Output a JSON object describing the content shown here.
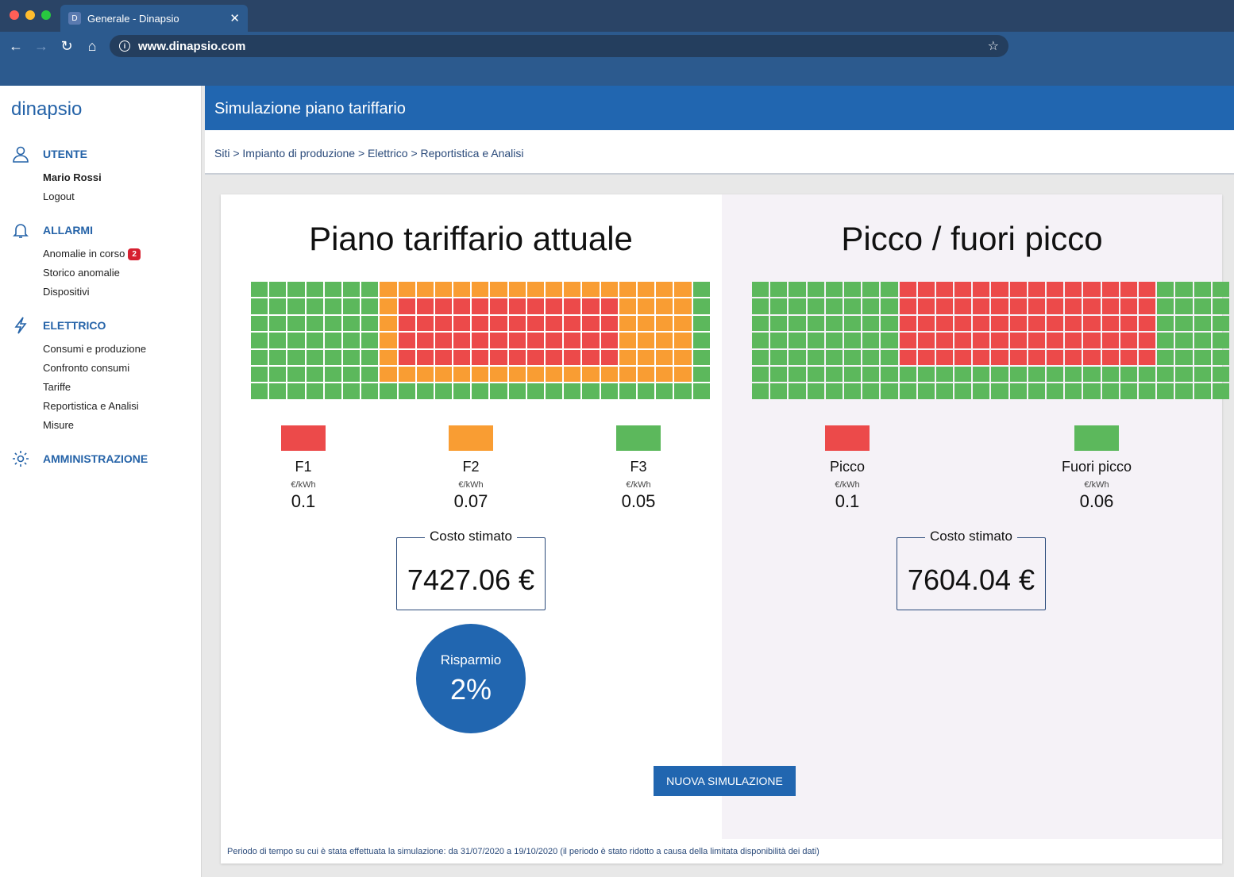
{
  "browser": {
    "tab_title": "Generale - Dinapsio",
    "tab_favicon": "D",
    "url": "www.dinapsio.com"
  },
  "sidebar": {
    "logo": "dinapsio",
    "user": {
      "heading": "UTENTE",
      "name": "Mario Rossi",
      "logout": "Logout"
    },
    "alarms": {
      "heading": "ALLARMI",
      "items": [
        "Anomalie in corso",
        "Storico anomalie",
        "Dispositivi"
      ],
      "badge": "2"
    },
    "electric": {
      "heading": "ELETTRICO",
      "items": [
        "Consumi e produzione",
        "Confronto consumi",
        "Tariffe",
        "Reportistica e Analisi",
        "Misure"
      ]
    },
    "admin": {
      "heading": "AMMINISTRAZIONE"
    }
  },
  "header": {
    "title": "Simulazione piano tariffario"
  },
  "breadcrumb": "Siti > Impianto di produzione > Elettrico > Reportistica e Analisi",
  "colors": {
    "F1": "#ec4a4a",
    "F2": "#f99d33",
    "F3": "#5cb85c",
    "primary": "#2166b0"
  },
  "left": {
    "title": "Piano tariffario attuale",
    "bands": [
      {
        "name": "F1",
        "unit": "€/kWh",
        "value": "0.1",
        "color": "#ec4a4a"
      },
      {
        "name": "F2",
        "unit": "€/kWh",
        "value": "0.07",
        "color": "#f99d33"
      },
      {
        "name": "F3",
        "unit": "€/kWh",
        "value": "0.05",
        "color": "#5cb85c"
      }
    ],
    "cost_label": "Costo stimato",
    "cost_value": "7427.06 €",
    "grid": [
      "3333333222222222222222223",
      "3333333211111111111122223",
      "3333333211111111111122223",
      "3333333211111111111122223",
      "3333333211111111111122223",
      "3333333222222222222222223",
      "3333333333333333333333333"
    ]
  },
  "saving": {
    "label": "Risparmio",
    "value": "2%"
  },
  "right": {
    "title": "Picco / fuori picco",
    "bands": [
      {
        "name": "Picco",
        "unit": "€/kWh",
        "value": "0.1",
        "color": "#ec4a4a"
      },
      {
        "name": "Fuori picco",
        "unit": "€/kWh",
        "value": "0.06",
        "color": "#5cb85c"
      }
    ],
    "cost_label": "Costo stimato",
    "cost_value": "7604.04 €",
    "grid": [
      "33333333111111111111113333",
      "33333333111111111111113333",
      "33333333111111111111113333",
      "33333333111111111111113333",
      "33333333111111111111113333",
      "33333333333333333333333333",
      "33333333333333333333333333"
    ]
  },
  "button": "NUOVA SIMULAZIONE",
  "footer": "Periodo di tempo su cui è stata effettuata la simulazione: da 31/07/2020 a 19/10/2020 (il periodo è stato ridotto a causa della limitata disponibilità dei dati)"
}
